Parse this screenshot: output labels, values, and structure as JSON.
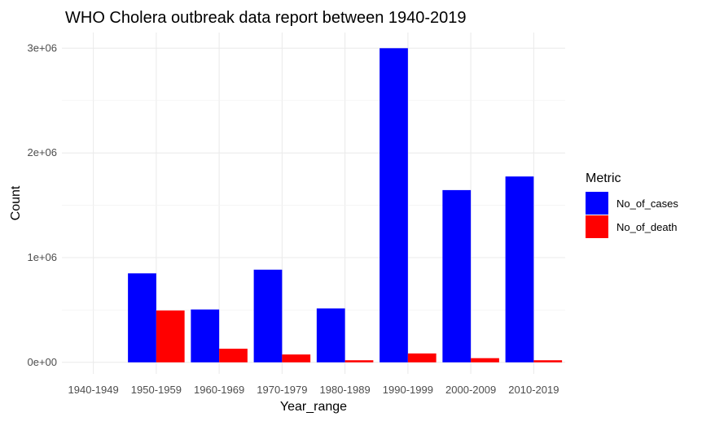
{
  "chart_data": {
    "type": "bar",
    "title": "WHO Cholera outbreak data report between 1940-2019",
    "xlabel": "Year_range",
    "ylabel": "Count",
    "categories": [
      "1940-1949",
      "1950-1959",
      "1960-1969",
      "1970-1979",
      "1980-1989",
      "1990-1999",
      "2000-2009",
      "2010-2019"
    ],
    "series": [
      {
        "name": "No_of_cases",
        "color": "#0000ff",
        "values": [
          0,
          850000,
          505000,
          885000,
          515000,
          3000000,
          1645000,
          1775000
        ]
      },
      {
        "name": "No_of_death",
        "color": "#ff0000",
        "values": [
          0,
          495000,
          130000,
          75000,
          20000,
          85000,
          40000,
          20000
        ]
      }
    ],
    "ylim": [
      -110000,
      3150000
    ],
    "yticks": [
      0,
      1000000,
      2000000,
      3000000
    ],
    "ytick_labels": [
      "0e+00",
      "1e+06",
      "2e+06",
      "3e+06"
    ],
    "legend": {
      "title": "Metric",
      "position": "right"
    },
    "grid": true
  }
}
